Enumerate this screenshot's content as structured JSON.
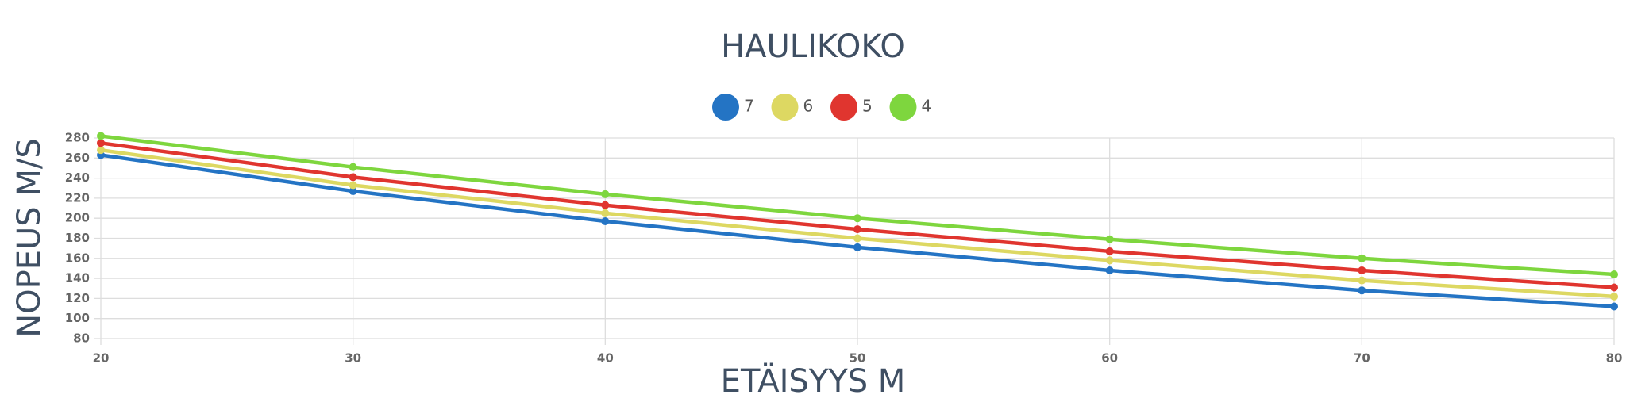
{
  "chart_data": {
    "type": "line",
    "title": "HAULIKOKO",
    "x_label": "ETÄISYYS M",
    "y_label": "NOPEUS M/S",
    "x": [
      20,
      30,
      40,
      50,
      60,
      70,
      80
    ],
    "series": [
      {
        "name": "7",
        "color": "#2474c4",
        "values": [
          263,
          227,
          197,
          171,
          148,
          128,
          112
        ]
      },
      {
        "name": "6",
        "color": "#ddd862",
        "values": [
          268,
          233,
          205,
          180,
          158,
          138,
          122
        ]
      },
      {
        "name": "5",
        "color": "#e0352f",
        "values": [
          275,
          241,
          213,
          189,
          167,
          148,
          131
        ]
      },
      {
        "name": "4",
        "color": "#7ed63e",
        "values": [
          282,
          251,
          224,
          200,
          179,
          160,
          144
        ]
      }
    ],
    "xlim": [
      20,
      80
    ],
    "xticks": [
      20,
      30,
      40,
      50,
      60,
      70,
      80
    ],
    "ylim": [
      80,
      280
    ],
    "yticks": [
      80,
      100,
      120,
      140,
      160,
      180,
      200,
      220,
      240,
      260,
      280
    ],
    "grid": true,
    "legend": "top"
  }
}
